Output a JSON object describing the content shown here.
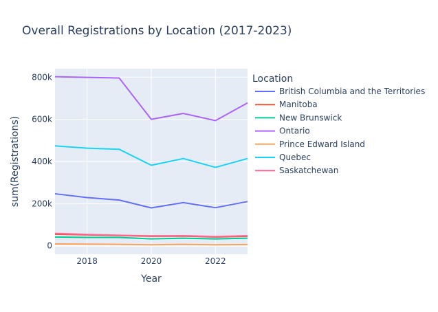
{
  "chart_data": {
    "type": "line",
    "title": "Overall Registrations by Location (2017-2023)",
    "xlabel": "Year",
    "ylabel": "sum(Registrations)",
    "xlim": [
      2017,
      2023
    ],
    "ylim": [
      -40000,
      840000
    ],
    "x_ticks": [
      2018,
      2020,
      2022
    ],
    "x_tick_labels": [
      "2018",
      "2020",
      "2022"
    ],
    "y_ticks": [
      0,
      200000,
      400000,
      600000,
      800000
    ],
    "y_tick_labels": [
      "0",
      "200k",
      "400k",
      "600k",
      "800k"
    ],
    "grid": true,
    "legend_title": "Location",
    "legend_position": "right",
    "x": [
      2017,
      2018,
      2019,
      2020,
      2021,
      2022,
      2023
    ],
    "series": [
      {
        "name": "British Columbia and the Territories",
        "color": "#636efa",
        "values": [
          247000,
          229000,
          217000,
          180000,
          205000,
          181000,
          210000
        ]
      },
      {
        "name": "Manitoba",
        "color": "#ef553b",
        "values": [
          55000,
          52000,
          49000,
          45000,
          46000,
          42000,
          45000
        ]
      },
      {
        "name": "New Brunswick",
        "color": "#00cc96",
        "values": [
          42000,
          40000,
          40000,
          33000,
          36000,
          33000,
          36000
        ]
      },
      {
        "name": "Ontario",
        "color": "#ab63fa",
        "values": [
          802000,
          799000,
          796000,
          600000,
          628000,
          594000,
          678000
        ]
      },
      {
        "name": "Prince Edward Island",
        "color": "#ffa15a",
        "values": [
          9000,
          8000,
          7000,
          5000,
          7000,
          5000,
          6000
        ]
      },
      {
        "name": "Quebec",
        "color": "#19d3f3",
        "values": [
          474000,
          463000,
          458000,
          382000,
          414000,
          372000,
          414000
        ]
      },
      {
        "name": "Saskatchewan",
        "color": "#ff6692",
        "values": [
          59000,
          54000,
          50000,
          47000,
          48000,
          44000,
          48000
        ]
      }
    ]
  }
}
